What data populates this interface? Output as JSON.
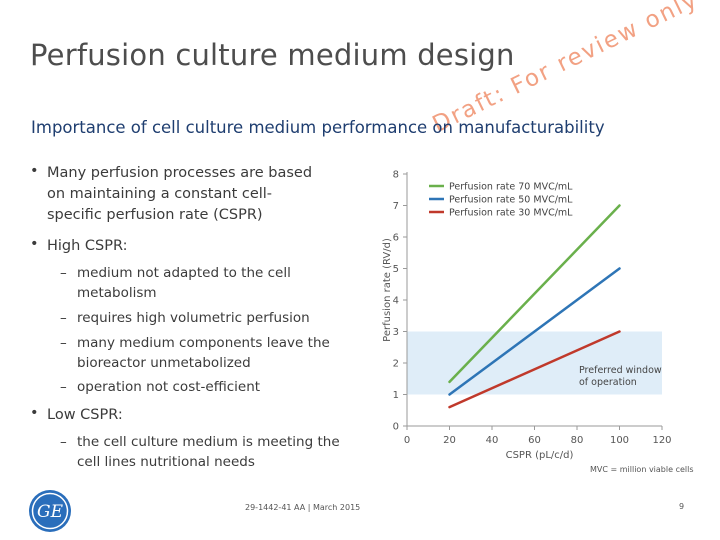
{
  "slide": {
    "title": "Perfusion culture medium design",
    "watermark": "Draft: For review only",
    "subtitle": "Importance of cell culture medium performance on manufacturability",
    "footnote": "MVC = million viable cells",
    "footer_id": "29-1442-41 AA | March 2015",
    "page_number": "9",
    "logo_text": "GE"
  },
  "bullets": {
    "b1": {
      "lines": [
        "Many perfusion processes are based",
        "on maintaining a constant cell-",
        "specific perfusion rate (CSPR)"
      ]
    },
    "b2": {
      "label": "High CSPR:"
    },
    "b2_items": [
      {
        "lines": [
          "medium not adapted to the cell",
          "metabolism"
        ]
      },
      {
        "lines": [
          "requires high volumetric perfusion"
        ]
      },
      {
        "lines": [
          "many medium components leave the",
          "bioreactor unmetabolized"
        ]
      },
      {
        "lines": [
          "operation not cost-efficient"
        ]
      }
    ],
    "b3": {
      "label": "Low CSPR:"
    },
    "b3_items": [
      {
        "lines": [
          "the cell culture medium is meeting the",
          "cell lines nutritional needs"
        ]
      }
    ]
  },
  "chart_data": {
    "type": "line",
    "xlabel": "CSPR (pL/c/d)",
    "ylabel": "Perfusion rate (RV/d)",
    "xlim": [
      0,
      120
    ],
    "ylim": [
      0,
      8
    ],
    "x_ticks": [
      "0",
      "20",
      "40",
      "60",
      "80",
      "100",
      "120"
    ],
    "y_ticks": [
      "0",
      "1",
      "2",
      "3",
      "4",
      "5",
      "6",
      "7",
      "8"
    ],
    "series": [
      {
        "name": "Perfusion rate 70 MVC/mL",
        "color": "#6ab04c",
        "points": [
          [
            20,
            1.4
          ],
          [
            100,
            7.0
          ]
        ]
      },
      {
        "name": "Perfusion rate 50 MVC/mL",
        "color": "#2e75b6",
        "points": [
          [
            20,
            1.0
          ],
          [
            100,
            5.0
          ]
        ]
      },
      {
        "name": "Perfusion rate 30 MVC/mL",
        "color": "#c0392b",
        "points": [
          [
            20,
            0.6
          ],
          [
            100,
            3.0
          ]
        ]
      }
    ],
    "shaded_region": {
      "y_range": [
        1,
        3
      ],
      "label_lines": [
        "Preferred window",
        "of operation"
      ],
      "color": "#dfedf8"
    },
    "legend_position": "top-left",
    "grid": false
  }
}
